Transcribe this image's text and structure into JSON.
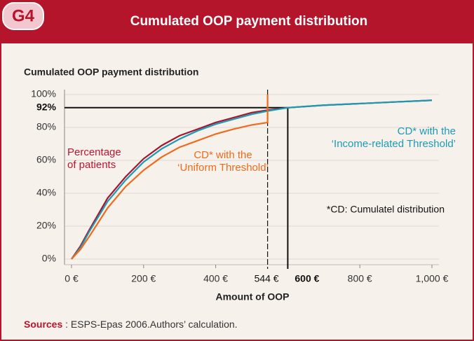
{
  "header": {
    "badge": "G4",
    "title": "Cumulated OOP payment distribution"
  },
  "chart_data": {
    "type": "line",
    "title": "Cumulated OOP payment distribution",
    "x_label": "Amount of OOP",
    "y_label": "Percentage\nof patients",
    "xlim": [
      0,
      1000
    ],
    "ylim": [
      0,
      100
    ],
    "xticks": [
      {
        "value": 0,
        "label": "0 €"
      },
      {
        "value": 200,
        "label": "200 €"
      },
      {
        "value": 400,
        "label": "400 €"
      },
      {
        "value": 800,
        "label": "800 €"
      },
      {
        "value": 1000,
        "label": "1,000 €"
      }
    ],
    "yticks": [
      {
        "value": 0,
        "label": "0%"
      },
      {
        "value": 20,
        "label": "20%"
      },
      {
        "value": 40,
        "label": "40%"
      },
      {
        "value": 60,
        "label": "60%"
      },
      {
        "value": 80,
        "label": "80%"
      },
      {
        "value": 100,
        "label": "100%"
      }
    ],
    "grid": true,
    "x_markers": [
      {
        "value": 544,
        "label": "544 €",
        "style": "dashed"
      },
      {
        "value": 600,
        "label": "600 €",
        "style": "solid"
      }
    ],
    "y_markers": [
      {
        "value": 92,
        "label": "92%"
      }
    ],
    "series": [
      {
        "color": "#a3162f",
        "x": [
          0,
          25,
          50,
          100,
          150,
          200,
          250,
          300,
          350,
          400,
          450,
          500,
          544,
          600,
          700,
          800,
          900,
          1000
        ],
        "values": [
          0,
          8,
          18,
          37,
          50,
          61,
          69,
          75,
          79,
          83,
          86,
          89,
          90.5,
          92,
          93.5,
          94.5,
          95.5,
          96.5
        ]
      },
      {
        "name": "CD* with the\n‘Income-related Threshold’",
        "color": "#1b9bb3",
        "x": [
          0,
          25,
          50,
          100,
          150,
          200,
          250,
          300,
          350,
          400,
          450,
          500,
          544,
          600,
          700,
          800,
          900,
          1000
        ],
        "values": [
          0,
          7,
          17,
          35,
          48,
          59,
          67,
          73,
          78,
          82,
          85,
          88,
          90,
          92,
          93.5,
          94.5,
          95.5,
          96.5
        ]
      },
      {
        "name": "CD* with the\n‘Uniform Threshold’",
        "color": "#ee6b1c",
        "x": [
          0,
          25,
          50,
          100,
          150,
          200,
          250,
          300,
          350,
          400,
          450,
          500,
          544,
          544
        ],
        "values": [
          0,
          6,
          14,
          31,
          44,
          54,
          62,
          68,
          72,
          76,
          79,
          81.5,
          83,
          100
        ]
      }
    ],
    "annotations": [
      "*CD: Cumulatel distribution"
    ]
  },
  "footer": {
    "source_label": "Sources",
    "source_text": " : ESPS-Epas 2006.Authors’ calculation."
  }
}
